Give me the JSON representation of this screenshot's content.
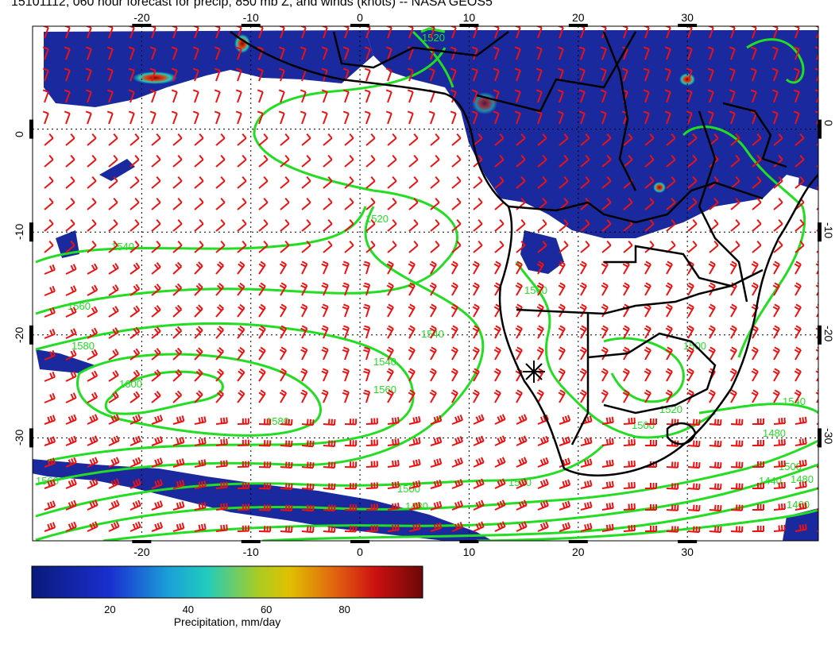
{
  "title": "15101112, 060 hour forecast for precip, 850 mb Z, and winds (knots) -- NASA GEOS5",
  "map": {
    "lon_range": [
      -30,
      42
    ],
    "lat_range": [
      -40,
      10
    ],
    "lon_ticks": [
      "-20",
      "-10",
      "0",
      "10",
      "20",
      "30"
    ],
    "lat_ticks": [
      "0",
      "-10",
      "-20",
      "-30"
    ],
    "contour_labels": [
      "1540",
      "1560",
      "1580",
      "1600",
      "1580",
      "1560",
      "1540",
      "1520",
      "1520",
      "1540",
      "1560",
      "1500",
      "1480",
      "1520",
      "1500",
      "1480",
      "1460",
      "1440",
      "1480",
      "1500",
      "1520",
      "1540",
      "1560",
      "1500"
    ],
    "colors": {
      "precip_low": "#1a2a9e",
      "contour": "#22dd22",
      "wind_barb": "#ee1111",
      "border": "#000000",
      "grid": "#000000"
    }
  },
  "colorbar": {
    "ticks": [
      "20",
      "40",
      "60",
      "80"
    ],
    "tick_values": [
      20,
      40,
      60,
      80
    ],
    "range": [
      0,
      100
    ],
    "label": "Precipitation, mm/day"
  }
}
